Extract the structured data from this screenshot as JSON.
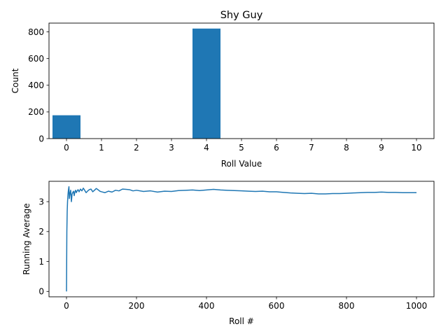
{
  "figure": {
    "title": "Shy Guy"
  },
  "chart_data": [
    {
      "type": "bar",
      "title": "Shy Guy",
      "xlabel": "Roll Value",
      "ylabel": "Count",
      "categories": [
        "0",
        "1",
        "2",
        "3",
        "4",
        "5",
        "6",
        "7",
        "8",
        "9",
        "10"
      ],
      "values": [
        175,
        0,
        0,
        0,
        825,
        0,
        0,
        0,
        0,
        0,
        0
      ],
      "xlim": [
        -0.5,
        10.5
      ],
      "ylim": [
        0,
        866
      ],
      "yticks": [
        0,
        200,
        400,
        600,
        800
      ],
      "xticks": [
        0,
        1,
        2,
        3,
        4,
        5,
        6,
        7,
        8,
        9,
        10
      ],
      "bar_width": 0.8,
      "grid": false,
      "color": "#1f77b4"
    },
    {
      "type": "line",
      "title": "",
      "xlabel": "Roll #",
      "ylabel": "Running Average",
      "xlim": [
        -50,
        1050
      ],
      "ylim": [
        -0.18,
        3.68
      ],
      "xticks": [
        0,
        200,
        400,
        600,
        800,
        1000
      ],
      "yticks": [
        0,
        1,
        2,
        3
      ],
      "grid": false,
      "series": [
        {
          "color": "#1f77b4",
          "x": [
            0,
            1,
            2,
            3,
            4,
            5,
            6,
            7,
            8,
            9,
            10,
            12,
            14,
            16,
            18,
            20,
            22,
            24,
            26,
            28,
            30,
            33,
            36,
            40,
            44,
            48,
            52,
            56,
            60,
            65,
            70,
            75,
            80,
            85,
            90,
            95,
            100,
            110,
            120,
            130,
            140,
            150,
            160,
            170,
            180,
            190,
            200,
            220,
            240,
            260,
            280,
            300,
            320,
            340,
            360,
            380,
            400,
            420,
            440,
            460,
            480,
            500,
            520,
            540,
            560,
            580,
            600,
            620,
            640,
            660,
            680,
            700,
            720,
            740,
            760,
            780,
            800,
            820,
            840,
            860,
            880,
            900,
            920,
            940,
            960,
            980,
            1000
          ],
          "y": [
            0,
            2.0,
            2.67,
            3.0,
            3.2,
            3.33,
            3.43,
            3.5,
            3.1,
            3.2,
            3.27,
            3.38,
            3.0,
            3.25,
            3.31,
            3.35,
            3.2,
            3.33,
            3.38,
            3.3,
            3.35,
            3.4,
            3.33,
            3.42,
            3.36,
            3.45,
            3.38,
            3.3,
            3.35,
            3.4,
            3.42,
            3.33,
            3.38,
            3.44,
            3.4,
            3.35,
            3.33,
            3.3,
            3.35,
            3.32,
            3.38,
            3.36,
            3.42,
            3.41,
            3.4,
            3.36,
            3.38,
            3.34,
            3.36,
            3.32,
            3.35,
            3.34,
            3.37,
            3.38,
            3.39,
            3.37,
            3.39,
            3.41,
            3.39,
            3.38,
            3.37,
            3.36,
            3.35,
            3.34,
            3.35,
            3.33,
            3.33,
            3.31,
            3.29,
            3.28,
            3.27,
            3.28,
            3.26,
            3.26,
            3.27,
            3.27,
            3.28,
            3.29,
            3.3,
            3.31,
            3.31,
            3.32,
            3.31,
            3.31,
            3.3,
            3.3,
            3.3
          ]
        }
      ]
    }
  ]
}
